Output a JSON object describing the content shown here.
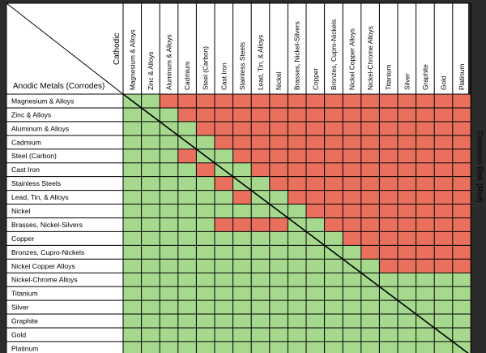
{
  "chart_data": {
    "type": "heatmap",
    "row_title": "Anodic Metals (Corrodes)",
    "col_title": "Cathodic",
    "side_label": "Corrosion Risk (Red)",
    "metals": [
      "Magnesium & Alloys",
      "Zinc & Alloys",
      "Aluminum & Alloys",
      "Cadmium",
      "Steel (Carbon)",
      "Cast Iron",
      "Stainless Steels",
      "Lead, Tin, & Alloys",
      "Nickel",
      "Brasses, Nickel-Silvers",
      "Copper",
      "Bronzes, Cupro-Nickels",
      "Nickel Copper Alloys",
      "Nickel-Chrome Alloys",
      "Titanium",
      "Silver",
      "Graphite",
      "Gold",
      "Platinum"
    ],
    "risk_matrix": [
      [
        0,
        0,
        1,
        1,
        1,
        1,
        1,
        1,
        1,
        1,
        1,
        1,
        1,
        1,
        1,
        1,
        1,
        1,
        1
      ],
      [
        0,
        0,
        0,
        1,
        1,
        1,
        1,
        1,
        1,
        1,
        1,
        1,
        1,
        1,
        1,
        1,
        1,
        1,
        1
      ],
      [
        0,
        0,
        0,
        0,
        1,
        1,
        1,
        1,
        1,
        1,
        1,
        1,
        1,
        1,
        1,
        1,
        1,
        1,
        1
      ],
      [
        0,
        0,
        0,
        0,
        0,
        1,
        1,
        1,
        1,
        1,
        1,
        1,
        1,
        1,
        1,
        1,
        1,
        1,
        1
      ],
      [
        0,
        0,
        0,
        1,
        0,
        0,
        1,
        1,
        1,
        1,
        1,
        1,
        1,
        1,
        1,
        1,
        1,
        1,
        1
      ],
      [
        0,
        0,
        0,
        0,
        1,
        0,
        0,
        1,
        1,
        1,
        1,
        1,
        1,
        1,
        1,
        1,
        1,
        1,
        1
      ],
      [
        0,
        0,
        0,
        0,
        0,
        1,
        0,
        0,
        1,
        1,
        1,
        1,
        1,
        1,
        1,
        1,
        1,
        1,
        1
      ],
      [
        0,
        0,
        0,
        0,
        0,
        0,
        1,
        0,
        0,
        1,
        1,
        1,
        1,
        1,
        1,
        1,
        1,
        1,
        1
      ],
      [
        0,
        0,
        0,
        0,
        0,
        0,
        0,
        0,
        0,
        0,
        1,
        1,
        1,
        1,
        1,
        1,
        1,
        1,
        1
      ],
      [
        0,
        0,
        0,
        0,
        0,
        1,
        1,
        1,
        1,
        0,
        0,
        1,
        1,
        1,
        1,
        1,
        1,
        1,
        1
      ],
      [
        0,
        0,
        0,
        0,
        0,
        0,
        0,
        0,
        0,
        0,
        0,
        0,
        1,
        1,
        1,
        1,
        1,
        1,
        1
      ],
      [
        0,
        0,
        0,
        0,
        0,
        0,
        0,
        0,
        0,
        0,
        0,
        0,
        0,
        1,
        1,
        1,
        1,
        1,
        1
      ],
      [
        0,
        0,
        0,
        0,
        0,
        0,
        0,
        0,
        0,
        0,
        0,
        0,
        0,
        0,
        1,
        1,
        1,
        1,
        1
      ],
      [
        0,
        0,
        0,
        0,
        0,
        0,
        0,
        0,
        0,
        0,
        0,
        0,
        0,
        0,
        0,
        0,
        0,
        0,
        0
      ],
      [
        0,
        0,
        0,
        0,
        0,
        0,
        0,
        0,
        0,
        0,
        0,
        0,
        0,
        0,
        0,
        0,
        0,
        0,
        0
      ],
      [
        0,
        0,
        0,
        0,
        0,
        0,
        0,
        0,
        0,
        0,
        0,
        0,
        0,
        0,
        0,
        0,
        0,
        0,
        0
      ],
      [
        0,
        0,
        0,
        0,
        0,
        0,
        0,
        0,
        0,
        0,
        0,
        0,
        0,
        0,
        0,
        0,
        0,
        0,
        0
      ],
      [
        0,
        0,
        0,
        0,
        0,
        0,
        0,
        0,
        0,
        0,
        0,
        0,
        0,
        0,
        0,
        0,
        0,
        0,
        0
      ],
      [
        0,
        0,
        0,
        0,
        0,
        0,
        0,
        0,
        0,
        0,
        0,
        0,
        0,
        0,
        0,
        0,
        0,
        0,
        0
      ]
    ],
    "colors": {
      "risk": "#e8705c",
      "safe": "#a6d98e",
      "grid": "#000000",
      "background": "#ffffff",
      "frame": "#2b2b2b"
    }
  }
}
